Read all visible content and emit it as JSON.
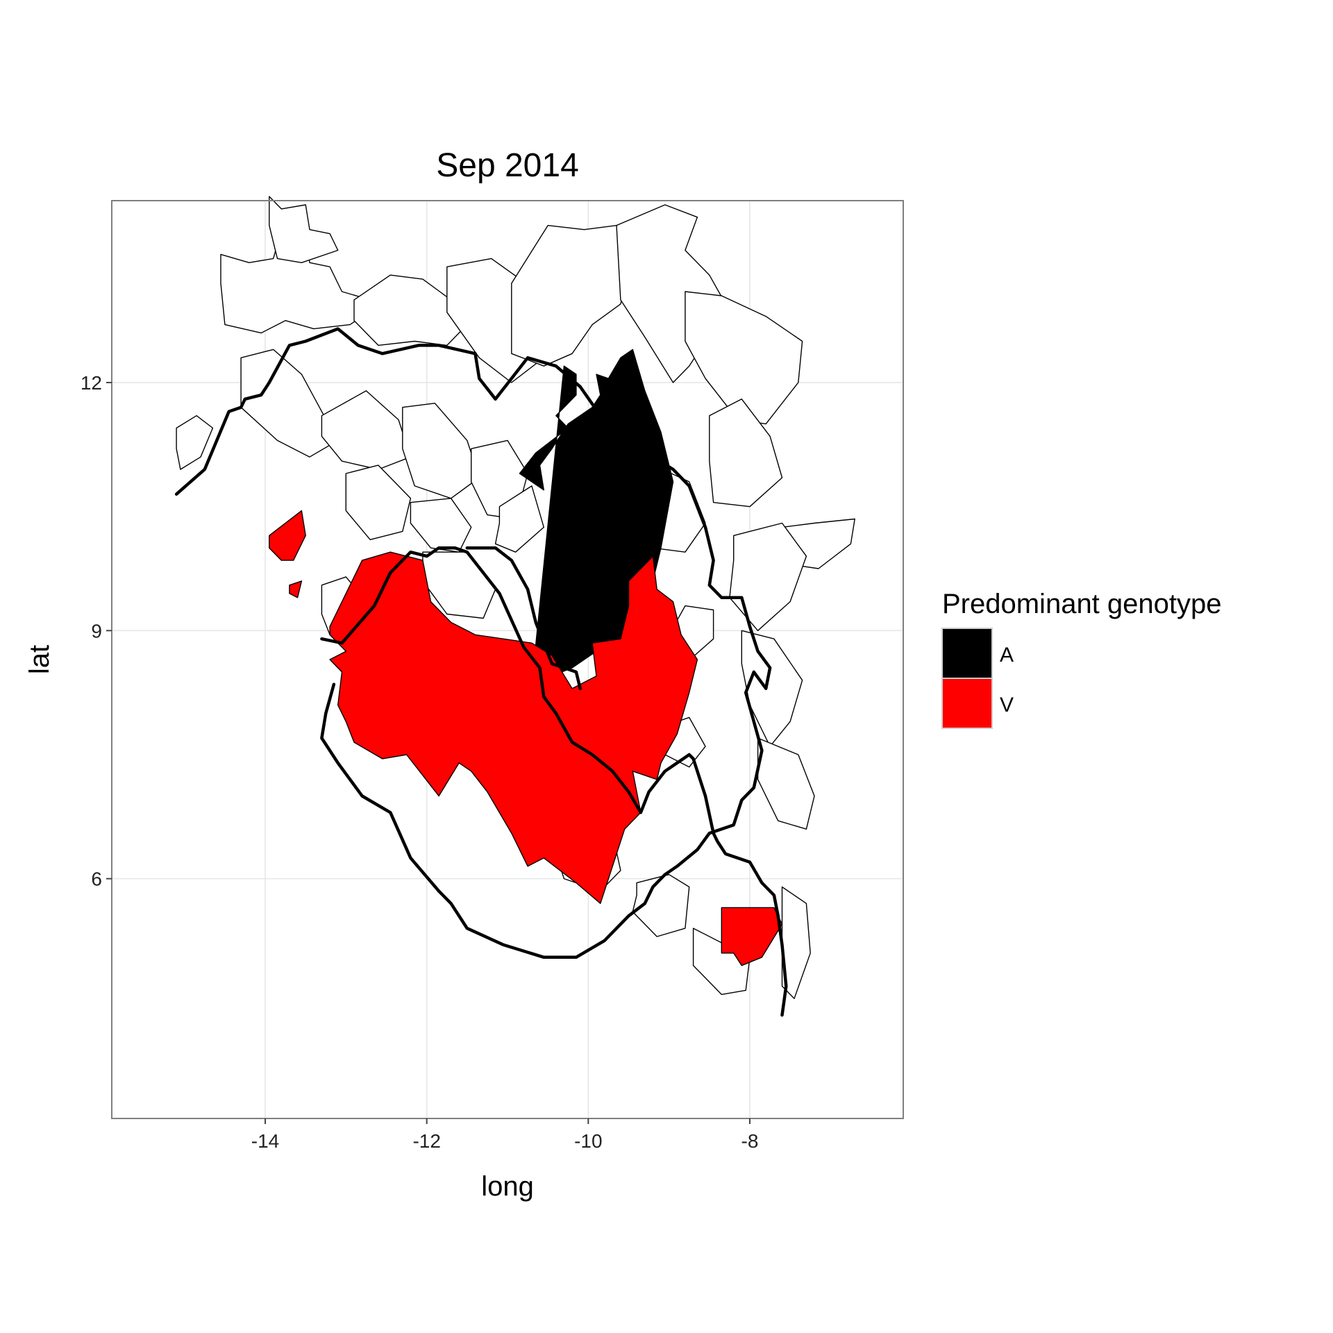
{
  "chart_data": {
    "type": "choropleth",
    "title": "Sep 2014",
    "xlabel": "long",
    "ylabel": "lat",
    "xlim": [
      -15.9,
      -6.1
    ],
    "ylim": [
      3.1,
      14.2
    ],
    "x_ticks": [
      -14,
      -12,
      -10,
      -8
    ],
    "y_ticks": [
      6,
      9,
      12
    ],
    "x_tick_labels": [
      "-14",
      "-12",
      "-10",
      "-8"
    ],
    "y_tick_labels": [
      "6",
      "9",
      "12"
    ],
    "grid": true,
    "legend": {
      "title": "Predominant genotype",
      "position": "right",
      "entries": [
        {
          "label": "A",
          "color": "#000000"
        },
        {
          "label": "V",
          "color": "#ff0000"
        }
      ]
    },
    "fill_none": "#ffffff",
    "regions": [
      {
        "genotype": "A",
        "lon": [
          -10.7,
          -10.2,
          -9.9,
          -9.6,
          -9.45,
          -9.25,
          -9.1,
          -8.95,
          -9.1,
          -9.3,
          -9.45,
          -9.6,
          -9.75,
          -9.9,
          -9.85,
          -9.95,
          -10.25,
          -10.45,
          -10.6,
          -10.55,
          -10.85,
          -10.65,
          -10.25,
          -10.4,
          -10.15,
          -10.15,
          -10.3
        ],
        "lat": [
          8.35,
          8.55,
          8.75,
          8.8,
          9.05,
          9.4,
          10.0,
          10.8,
          11.4,
          11.9,
          12.4,
          12.3,
          12.05,
          12.1,
          11.85,
          11.7,
          11.5,
          11.2,
          11.0,
          10.7,
          10.9,
          11.15,
          11.45,
          11.6,
          11.85,
          12.1,
          12.2
        ]
      },
      {
        "genotype": "V",
        "lon": [
          -13.95,
          -13.55,
          -13.5,
          -13.65,
          -13.8,
          -13.95
        ],
        "lat": [
          10.15,
          10.45,
          10.15,
          9.85,
          9.85,
          10.0
        ]
      },
      {
        "genotype": "V",
        "lon": [
          -13.7,
          -13.55,
          -13.6,
          -13.7
        ],
        "lat": [
          9.55,
          9.6,
          9.4,
          9.45
        ]
      },
      {
        "genotype": "V",
        "lon": [
          -13.2,
          -12.8,
          -12.45,
          -12.05,
          -11.95,
          -11.7,
          -11.4,
          -11.05,
          -10.7,
          -10.45,
          -10.2,
          -9.9,
          -9.95,
          -9.6,
          -9.5,
          -9.5,
          -9.2,
          -9.15,
          -8.95,
          -8.85,
          -8.65,
          -8.75,
          -8.9,
          -9.1,
          -9.15,
          -9.45,
          -9.35,
          -9.55,
          -9.85,
          -10.15,
          -10.55,
          -10.75,
          -10.95,
          -11.25,
          -11.45,
          -11.6,
          -11.85,
          -12.25,
          -12.55,
          -12.9,
          -13.0,
          -13.1,
          -13.05,
          -13.2,
          -13.0,
          -13.2
        ],
        "lat": [
          9.05,
          9.85,
          9.95,
          9.85,
          9.35,
          9.1,
          8.95,
          8.9,
          8.85,
          8.7,
          8.3,
          8.45,
          8.85,
          8.9,
          9.3,
          9.6,
          9.9,
          9.5,
          9.35,
          8.95,
          8.65,
          8.25,
          7.75,
          7.4,
          7.2,
          7.3,
          6.8,
          6.6,
          5.7,
          5.95,
          6.25,
          6.15,
          6.55,
          7.05,
          7.3,
          7.4,
          7.0,
          7.5,
          7.45,
          7.65,
          7.9,
          8.1,
          8.5,
          8.65,
          8.75,
          8.95
        ]
      },
      {
        "genotype": "V",
        "lon": [
          -8.35,
          -8.05,
          -7.7,
          -7.6,
          -7.85,
          -8.1,
          -8.2,
          -8.35
        ],
        "lat": [
          5.65,
          5.65,
          5.65,
          5.45,
          5.05,
          4.95,
          5.1,
          5.1
        ]
      }
    ],
    "country_borders": [
      {
        "lon": [
          -15.1,
          -14.75,
          -14.45,
          -14.3,
          -14.25,
          -14.05,
          -13.95,
          -13.7,
          -13.5,
          -13.1,
          -12.85,
          -12.55,
          -12.1,
          -11.85,
          -11.4,
          -11.35,
          -11.15,
          -10.95,
          -10.75,
          -10.4,
          -10.1,
          -9.85,
          -9.65,
          -9.2,
          -8.95,
          -8.75,
          -8.55,
          -8.45,
          -8.5,
          -8.35,
          -8.1,
          -8.0,
          -7.9,
          -7.75,
          -7.8,
          -7.95,
          -8.05,
          -7.95,
          -7.85,
          -7.95,
          -8.1,
          -8.2,
          -8.5,
          -8.65,
          -8.9,
          -9.05,
          -9.2,
          -9.3,
          -9.5,
          -9.8,
          -10.15,
          -10.55,
          -11.05,
          -11.5,
          -11.7,
          -11.85,
          -12.2,
          -12.45,
          -12.8,
          -13.1,
          -13.3,
          -13.25,
          -13.15
        ],
        "lat": [
          10.65,
          10.95,
          11.65,
          11.7,
          11.8,
          11.85,
          12.0,
          12.45,
          12.5,
          12.65,
          12.45,
          12.35,
          12.45,
          12.45,
          12.35,
          12.05,
          11.8,
          12.05,
          12.3,
          12.2,
          11.95,
          11.6,
          11.3,
          11.1,
          10.95,
          10.75,
          10.25,
          9.85,
          9.55,
          9.4,
          9.4,
          9.05,
          8.75,
          8.55,
          8.3,
          8.5,
          8.25,
          7.9,
          7.55,
          7.1,
          6.95,
          6.65,
          6.55,
          6.35,
          6.15,
          6.05,
          5.9,
          5.7,
          5.55,
          5.25,
          5.05,
          5.05,
          5.2,
          5.4,
          5.7,
          5.85,
          6.25,
          6.8,
          7.0,
          7.4,
          7.7,
          8.0,
          8.35
        ]
      },
      {
        "lon": [
          -11.5,
          -11.15,
          -10.95,
          -10.75,
          -10.65,
          -10.45,
          -10.15,
          -10.1
        ],
        "lat": [
          10.0,
          10.0,
          9.85,
          9.5,
          9.1,
          8.6,
          8.5,
          8.3
        ]
      },
      {
        "lon": [
          -13.3,
          -13.05,
          -12.65,
          -12.45,
          -12.2,
          -12.0,
          -11.85,
          -11.65,
          -11.5,
          -11.1,
          -10.8,
          -10.6,
          -10.55,
          -10.4,
          -10.2,
          -9.95,
          -9.7,
          -9.5,
          -9.35,
          -9.25,
          -9.05,
          -8.9,
          -8.75,
          -8.7,
          -8.55,
          -8.45,
          -8.4,
          -8.3,
          -8.0,
          -7.85,
          -7.7,
          -7.65,
          -7.6,
          -7.55,
          -7.6
        ],
        "lat": [
          8.9,
          8.85,
          9.3,
          9.7,
          9.95,
          9.9,
          10.0,
          10.0,
          9.95,
          9.45,
          8.8,
          8.55,
          8.2,
          8.0,
          7.65,
          7.5,
          7.3,
          7.05,
          6.8,
          7.05,
          7.3,
          7.4,
          7.5,
          7.45,
          7.0,
          6.55,
          6.45,
          6.3,
          6.2,
          5.95,
          5.8,
          5.55,
          5.2,
          4.7,
          4.35
        ]
      }
    ],
    "districts": [
      {
        "lon": [
          -14.55,
          -14.2,
          -13.9,
          -13.8,
          -13.5,
          -13.45,
          -13.2,
          -13.05,
          -12.7,
          -12.8,
          -12.95,
          -13.4,
          -13.75,
          -14.05,
          -14.5,
          -14.55
        ],
        "lat": [
          13.55,
          13.45,
          13.5,
          13.85,
          13.8,
          13.45,
          13.4,
          13.1,
          13.0,
          12.8,
          12.7,
          12.65,
          12.75,
          12.6,
          12.7,
          13.2
        ]
      },
      {
        "lon": [
          -13.95,
          -13.8,
          -13.5,
          -13.45,
          -13.2,
          -13.1,
          -13.55,
          -13.85,
          -13.95
        ],
        "lat": [
          14.25,
          14.1,
          14.15,
          13.85,
          13.8,
          13.6,
          13.45,
          13.5,
          13.9
        ]
      },
      {
        "lon": [
          -12.9,
          -12.45,
          -12.05,
          -11.7,
          -11.55,
          -11.75,
          -12.15,
          -12.6,
          -12.9
        ],
        "lat": [
          13.0,
          13.3,
          13.25,
          13.0,
          12.65,
          12.45,
          12.5,
          12.45,
          12.75
        ]
      },
      {
        "lon": [
          -11.75,
          -11.2,
          -10.7,
          -10.4,
          -10.55,
          -10.95,
          -11.35,
          -11.75
        ],
        "lat": [
          13.4,
          13.5,
          13.15,
          12.7,
          12.3,
          12.0,
          12.3,
          12.85
        ]
      },
      {
        "lon": [
          -10.95,
          -10.5,
          -10.05,
          -9.65,
          -9.45,
          -9.6,
          -9.95,
          -10.2,
          -10.55,
          -10.95
        ],
        "lat": [
          13.2,
          13.9,
          13.85,
          13.9,
          13.55,
          12.95,
          12.7,
          12.35,
          12.2,
          12.35
        ]
      },
      {
        "lon": [
          -9.65,
          -9.05,
          -8.65,
          -8.8,
          -8.5,
          -8.3,
          -8.55,
          -8.75,
          -8.95,
          -9.3,
          -9.6
        ],
        "lat": [
          13.9,
          14.15,
          14.0,
          13.6,
          13.3,
          12.95,
          12.5,
          12.2,
          12.0,
          12.55,
          13.0
        ]
      },
      {
        "lon": [
          -8.8,
          -8.35,
          -7.8,
          -7.35,
          -7.4,
          -7.8,
          -8.15,
          -8.55,
          -8.8
        ],
        "lat": [
          13.1,
          13.05,
          12.8,
          12.5,
          12.0,
          11.5,
          11.55,
          12.05,
          12.5
        ]
      },
      {
        "lon": [
          -8.5,
          -8.1,
          -7.75,
          -7.6,
          -8.0,
          -8.45,
          -8.5
        ],
        "lat": [
          11.6,
          11.8,
          11.35,
          10.85,
          10.5,
          10.55,
          11.05
        ]
      },
      {
        "lon": [
          -7.6,
          -7.2,
          -6.7,
          -6.75,
          -7.15,
          -7.5,
          -7.6
        ],
        "lat": [
          10.25,
          10.3,
          10.35,
          10.05,
          9.75,
          9.8,
          10.0
        ]
      },
      {
        "lon": [
          -8.2,
          -7.6,
          -7.3,
          -7.5,
          -7.9,
          -8.25,
          -8.2
        ],
        "lat": [
          10.15,
          10.3,
          9.9,
          9.35,
          9.0,
          9.4,
          9.85
        ]
      },
      {
        "lon": [
          -8.1,
          -7.7,
          -7.35,
          -7.5,
          -7.75,
          -8.0,
          -8.1
        ],
        "lat": [
          9.0,
          8.9,
          8.4,
          7.9,
          7.6,
          8.1,
          8.6
        ]
      },
      {
        "lon": [
          -7.9,
          -7.4,
          -7.2,
          -7.3,
          -7.65,
          -7.9
        ],
        "lat": [
          7.7,
          7.5,
          7.0,
          6.6,
          6.7,
          7.2
        ]
      },
      {
        "lon": [
          -14.3,
          -13.9,
          -13.55,
          -13.3,
          -13.1,
          -13.45,
          -13.85,
          -14.3
        ],
        "lat": [
          12.3,
          12.4,
          12.1,
          11.65,
          11.3,
          11.1,
          11.3,
          11.7
        ]
      },
      {
        "lon": [
          -13.3,
          -12.75,
          -12.35,
          -12.2,
          -12.6,
          -13.05,
          -13.3
        ],
        "lat": [
          11.6,
          11.9,
          11.55,
          11.1,
          10.95,
          11.05,
          11.35
        ]
      },
      {
        "lon": [
          -12.3,
          -11.9,
          -11.5,
          -11.35,
          -11.7,
          -12.15,
          -12.3
        ],
        "lat": [
          11.7,
          11.75,
          11.3,
          10.85,
          10.6,
          10.75,
          11.2
        ]
      },
      {
        "lon": [
          -13.0,
          -12.6,
          -12.2,
          -12.3,
          -12.7,
          -13.0
        ],
        "lat": [
          10.9,
          11.0,
          10.6,
          10.2,
          10.1,
          10.45
        ]
      },
      {
        "lon": [
          -12.2,
          -11.7,
          -11.45,
          -11.6,
          -11.95,
          -12.2
        ],
        "lat": [
          10.55,
          10.6,
          10.25,
          9.95,
          10.0,
          10.3
        ]
      },
      {
        "lon": [
          -11.45,
          -11.0,
          -10.75,
          -10.9,
          -11.25,
          -11.45
        ],
        "lat": [
          11.2,
          11.3,
          10.9,
          10.35,
          10.4,
          10.8
        ]
      },
      {
        "lon": [
          -11.1,
          -10.7,
          -10.55,
          -10.9,
          -11.15,
          -11.1
        ],
        "lat": [
          10.5,
          10.75,
          10.25,
          9.95,
          10.05,
          10.3
        ]
      },
      {
        "lon": [
          -9.3,
          -8.75,
          -8.55,
          -8.8,
          -9.2,
          -9.45,
          -9.3
        ],
        "lat": [
          11.05,
          10.8,
          10.3,
          9.95,
          10.0,
          10.5,
          10.9
        ]
      },
      {
        "lon": [
          -9.75,
          -9.3,
          -9.15,
          -9.4,
          -9.7,
          -9.75
        ],
        "lat": [
          10.2,
          10.4,
          10.05,
          9.6,
          9.6,
          9.9
        ]
      },
      {
        "lon": [
          -8.8,
          -8.45,
          -8.45,
          -8.8,
          -9.0,
          -8.8
        ],
        "lat": [
          9.3,
          9.25,
          8.9,
          8.6,
          8.95,
          9.3
        ]
      },
      {
        "lon": [
          -12.05,
          -11.5,
          -11.15,
          -11.3,
          -11.75,
          -12.05
        ],
        "lat": [
          9.95,
          9.95,
          9.5,
          9.15,
          9.2,
          9.6
        ]
      },
      {
        "lon": [
          -13.3,
          -13.0,
          -12.7,
          -12.85,
          -13.2,
          -13.3
        ],
        "lat": [
          9.55,
          9.65,
          9.3,
          8.95,
          8.95,
          9.2
        ]
      },
      {
        "lon": [
          -11.15,
          -10.8,
          -10.55,
          -10.2,
          -10.3,
          -10.75,
          -11.0,
          -11.15
        ],
        "lat": [
          7.55,
          7.85,
          7.55,
          7.45,
          7.0,
          6.75,
          6.8,
          7.2
        ]
      },
      {
        "lon": [
          -10.45,
          -10.0,
          -9.7,
          -9.6,
          -9.85,
          -10.3,
          -10.45
        ],
        "lat": [
          6.85,
          6.7,
          6.55,
          6.1,
          5.85,
          6.0,
          6.45
        ]
      },
      {
        "lon": [
          -9.4,
          -9.0,
          -8.75,
          -8.8,
          -9.15,
          -9.45,
          -9.4
        ],
        "lat": [
          5.95,
          6.05,
          5.9,
          5.4,
          5.3,
          5.6,
          5.8
        ]
      },
      {
        "lon": [
          -8.7,
          -8.3,
          -8.0,
          -8.05,
          -8.35,
          -8.7
        ],
        "lat": [
          5.4,
          5.2,
          5.05,
          4.65,
          4.6,
          4.95
        ]
      },
      {
        "lon": [
          -7.6,
          -7.3,
          -7.25,
          -7.45,
          -7.6
        ],
        "lat": [
          5.9,
          5.7,
          5.1,
          4.55,
          4.7
        ]
      },
      {
        "lon": [
          -9.05,
          -8.75,
          -8.55,
          -8.75,
          -9.05
        ],
        "lat": [
          7.85,
          7.95,
          7.6,
          7.35,
          7.5
        ]
      },
      {
        "lon": [
          -15.1,
          -14.85,
          -14.65,
          -14.8,
          -15.05,
          -15.1
        ],
        "lat": [
          11.45,
          11.6,
          11.45,
          11.1,
          10.95,
          11.2
        ]
      }
    ]
  }
}
